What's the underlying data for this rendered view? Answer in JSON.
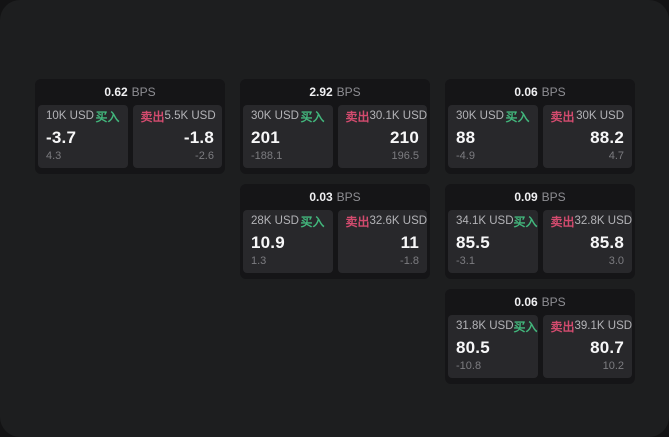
{
  "theme": {
    "page_bg": "#1d1e1f",
    "card_bg": "#151517",
    "panel_bg": "#28282b",
    "buy_color": "#42b67c",
    "sell_color": "#d24b6e"
  },
  "labels": {
    "bps": "BPS",
    "buy": "买入",
    "sell": "卖出"
  },
  "cards": [
    {
      "grid": {
        "col": 1,
        "row": 1
      },
      "spread": "0.62",
      "buy": {
        "amount": "10K USD",
        "price": "-3.7",
        "sub": "4.3"
      },
      "sell": {
        "amount": "5.5K USD",
        "price": "-1.8",
        "sub": "-2.6"
      }
    },
    {
      "grid": {
        "col": 2,
        "row": 1
      },
      "spread": "2.92",
      "buy": {
        "amount": "30K USD",
        "price": "201",
        "sub": "-188.1"
      },
      "sell": {
        "amount": "30.1K USD",
        "price": "210",
        "sub": "196.5"
      }
    },
    {
      "grid": {
        "col": 3,
        "row": 1
      },
      "spread": "0.06",
      "buy": {
        "amount": "30K USD",
        "price": "88",
        "sub": "-4.9"
      },
      "sell": {
        "amount": "30K USD",
        "price": "88.2",
        "sub": "4.7"
      }
    },
    {
      "grid": {
        "col": 2,
        "row": 2
      },
      "spread": "0.03",
      "buy": {
        "amount": "28K USD",
        "price": "10.9",
        "sub": "1.3"
      },
      "sell": {
        "amount": "32.6K USD",
        "price": "11",
        "sub": "-1.8"
      }
    },
    {
      "grid": {
        "col": 3,
        "row": 2
      },
      "spread": "0.09",
      "buy": {
        "amount": "34.1K USD",
        "price": "85.5",
        "sub": "-3.1"
      },
      "sell": {
        "amount": "32.8K USD",
        "price": "85.8",
        "sub": "3.0"
      }
    },
    {
      "grid": {
        "col": 3,
        "row": 3
      },
      "spread": "0.06",
      "buy": {
        "amount": "31.8K USD",
        "price": "80.5",
        "sub": "-10.8"
      },
      "sell": {
        "amount": "39.1K USD",
        "price": "80.7",
        "sub": "10.2"
      }
    }
  ]
}
